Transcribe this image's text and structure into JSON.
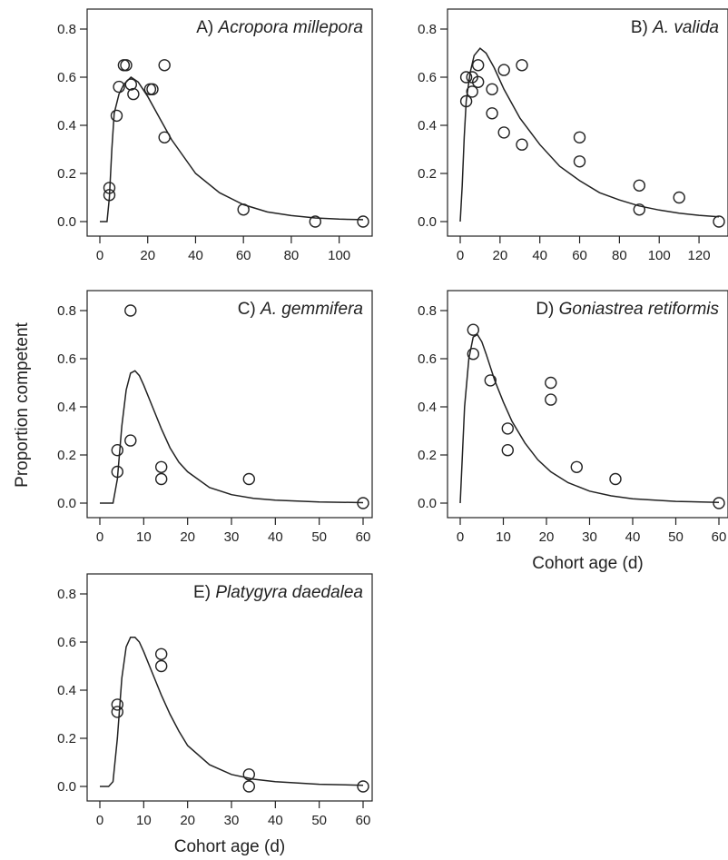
{
  "figure": {
    "ylabel": "Proportion competent",
    "xlabel": "Cohort age (d)"
  },
  "chart_data": [
    {
      "type": "scatter",
      "panel_letter": "A)",
      "species": "Acropora millepora",
      "xlim": [
        0,
        110
      ],
      "ylim": [
        0,
        0.8
      ],
      "xticks": [
        0,
        20,
        40,
        60,
        80,
        100
      ],
      "yticks": [
        0.0,
        0.2,
        0.4,
        0.6,
        0.8
      ],
      "show_xlabel": false,
      "points": [
        [
          4,
          0.14
        ],
        [
          4,
          0.11
        ],
        [
          7,
          0.44
        ],
        [
          8,
          0.56
        ],
        [
          10,
          0.65
        ],
        [
          11,
          0.65
        ],
        [
          13,
          0.57
        ],
        [
          14,
          0.53
        ],
        [
          21,
          0.55
        ],
        [
          22,
          0.55
        ],
        [
          27,
          0.65
        ],
        [
          27,
          0.35
        ],
        [
          60,
          0.05
        ],
        [
          90,
          0.0
        ],
        [
          110,
          0.0
        ]
      ],
      "fit_curve": [
        [
          0,
          0.0
        ],
        [
          3,
          0.0
        ],
        [
          4,
          0.1
        ],
        [
          5,
          0.3
        ],
        [
          6,
          0.45
        ],
        [
          8,
          0.53
        ],
        [
          10,
          0.57
        ],
        [
          13,
          0.6
        ],
        [
          16,
          0.58
        ],
        [
          20,
          0.52
        ],
        [
          25,
          0.43
        ],
        [
          30,
          0.34
        ],
        [
          40,
          0.2
        ],
        [
          50,
          0.12
        ],
        [
          60,
          0.07
        ],
        [
          70,
          0.04
        ],
        [
          80,
          0.025
        ],
        [
          90,
          0.015
        ],
        [
          100,
          0.01
        ],
        [
          110,
          0.008
        ]
      ]
    },
    {
      "type": "scatter",
      "panel_letter": "B)",
      "species": "A. valida",
      "xlim": [
        0,
        130
      ],
      "ylim": [
        0,
        0.8
      ],
      "xticks": [
        0,
        20,
        40,
        60,
        80,
        100,
        120
      ],
      "yticks": [
        0.0,
        0.2,
        0.4,
        0.6,
        0.8
      ],
      "show_xlabel": false,
      "points": [
        [
          3,
          0.5
        ],
        [
          3,
          0.6
        ],
        [
          6,
          0.6
        ],
        [
          6,
          0.54
        ],
        [
          9,
          0.58
        ],
        [
          9,
          0.65
        ],
        [
          16,
          0.55
        ],
        [
          16,
          0.45
        ],
        [
          22,
          0.63
        ],
        [
          22,
          0.37
        ],
        [
          31,
          0.65
        ],
        [
          31,
          0.32
        ],
        [
          60,
          0.35
        ],
        [
          60,
          0.25
        ],
        [
          90,
          0.15
        ],
        [
          90,
          0.05
        ],
        [
          110,
          0.1
        ],
        [
          130,
          0.0
        ]
      ],
      "fit_curve": [
        [
          0,
          0.0
        ],
        [
          1,
          0.15
        ],
        [
          2,
          0.35
        ],
        [
          3,
          0.5
        ],
        [
          5,
          0.62
        ],
        [
          7,
          0.69
        ],
        [
          10,
          0.72
        ],
        [
          13,
          0.7
        ],
        [
          17,
          0.64
        ],
        [
          22,
          0.55
        ],
        [
          30,
          0.43
        ],
        [
          40,
          0.32
        ],
        [
          50,
          0.23
        ],
        [
          60,
          0.17
        ],
        [
          70,
          0.12
        ],
        [
          80,
          0.09
        ],
        [
          90,
          0.065
        ],
        [
          100,
          0.048
        ],
        [
          110,
          0.035
        ],
        [
          120,
          0.026
        ],
        [
          130,
          0.02
        ]
      ]
    },
    {
      "type": "scatter",
      "panel_letter": "C)",
      "species": "A. gemmifera",
      "xlim": [
        0,
        60
      ],
      "ylim": [
        0,
        0.8
      ],
      "xticks": [
        0,
        10,
        20,
        30,
        40,
        50,
        60
      ],
      "yticks": [
        0.0,
        0.2,
        0.4,
        0.6,
        0.8
      ],
      "show_xlabel": false,
      "points": [
        [
          4,
          0.22
        ],
        [
          4,
          0.13
        ],
        [
          7,
          0.8
        ],
        [
          7,
          0.26
        ],
        [
          14,
          0.15
        ],
        [
          14,
          0.1
        ],
        [
          34,
          0.1
        ],
        [
          60,
          0.0
        ]
      ],
      "fit_curve": [
        [
          0,
          0.0
        ],
        [
          3,
          0.0
        ],
        [
          4,
          0.1
        ],
        [
          5,
          0.32
        ],
        [
          6,
          0.47
        ],
        [
          7,
          0.54
        ],
        [
          8,
          0.55
        ],
        [
          9,
          0.53
        ],
        [
          10,
          0.49
        ],
        [
          12,
          0.4
        ],
        [
          14,
          0.31
        ],
        [
          16,
          0.23
        ],
        [
          18,
          0.17
        ],
        [
          20,
          0.13
        ],
        [
          25,
          0.065
        ],
        [
          30,
          0.035
        ],
        [
          35,
          0.02
        ],
        [
          40,
          0.012
        ],
        [
          50,
          0.005
        ],
        [
          60,
          0.002
        ]
      ]
    },
    {
      "type": "scatter",
      "panel_letter": "D)",
      "species": "Goniastrea retiformis",
      "xlim": [
        0,
        60
      ],
      "ylim": [
        0,
        0.8
      ],
      "xticks": [
        0,
        10,
        20,
        30,
        40,
        50,
        60
      ],
      "yticks": [
        0.0,
        0.2,
        0.4,
        0.6,
        0.8
      ],
      "show_xlabel": true,
      "points": [
        [
          3,
          0.72
        ],
        [
          3,
          0.62
        ],
        [
          7,
          0.51
        ],
        [
          11,
          0.31
        ],
        [
          11,
          0.22
        ],
        [
          21,
          0.5
        ],
        [
          21,
          0.43
        ],
        [
          27,
          0.15
        ],
        [
          36,
          0.1
        ],
        [
          60,
          0.0
        ]
      ],
      "fit_curve": [
        [
          0,
          0.0
        ],
        [
          1,
          0.4
        ],
        [
          2,
          0.6
        ],
        [
          3,
          0.69
        ],
        [
          4,
          0.7
        ],
        [
          5,
          0.67
        ],
        [
          6,
          0.62
        ],
        [
          8,
          0.51
        ],
        [
          10,
          0.42
        ],
        [
          12,
          0.34
        ],
        [
          15,
          0.25
        ],
        [
          18,
          0.18
        ],
        [
          21,
          0.13
        ],
        [
          25,
          0.085
        ],
        [
          30,
          0.05
        ],
        [
          35,
          0.03
        ],
        [
          40,
          0.018
        ],
        [
          50,
          0.007
        ],
        [
          60,
          0.003
        ]
      ]
    },
    {
      "type": "scatter",
      "panel_letter": "E)",
      "species": "Platygyra daedalea",
      "xlim": [
        0,
        60
      ],
      "ylim": [
        0,
        0.8
      ],
      "xticks": [
        0,
        10,
        20,
        30,
        40,
        50,
        60
      ],
      "yticks": [
        0.0,
        0.2,
        0.4,
        0.6,
        0.8
      ],
      "show_xlabel": true,
      "points": [
        [
          4,
          0.34
        ],
        [
          4,
          0.31
        ],
        [
          14,
          0.55
        ],
        [
          14,
          0.5
        ],
        [
          34,
          0.05
        ],
        [
          34,
          0.0
        ],
        [
          60,
          0.0
        ]
      ],
      "fit_curve": [
        [
          0,
          0.0
        ],
        [
          2,
          0.0
        ],
        [
          3,
          0.02
        ],
        [
          4,
          0.2
        ],
        [
          5,
          0.45
        ],
        [
          6,
          0.58
        ],
        [
          7,
          0.62
        ],
        [
          8,
          0.62
        ],
        [
          9,
          0.6
        ],
        [
          10,
          0.56
        ],
        [
          12,
          0.47
        ],
        [
          14,
          0.38
        ],
        [
          16,
          0.3
        ],
        [
          18,
          0.23
        ],
        [
          20,
          0.17
        ],
        [
          25,
          0.09
        ],
        [
          30,
          0.05
        ],
        [
          35,
          0.03
        ],
        [
          40,
          0.02
        ],
        [
          50,
          0.009
        ],
        [
          60,
          0.005
        ]
      ]
    }
  ]
}
